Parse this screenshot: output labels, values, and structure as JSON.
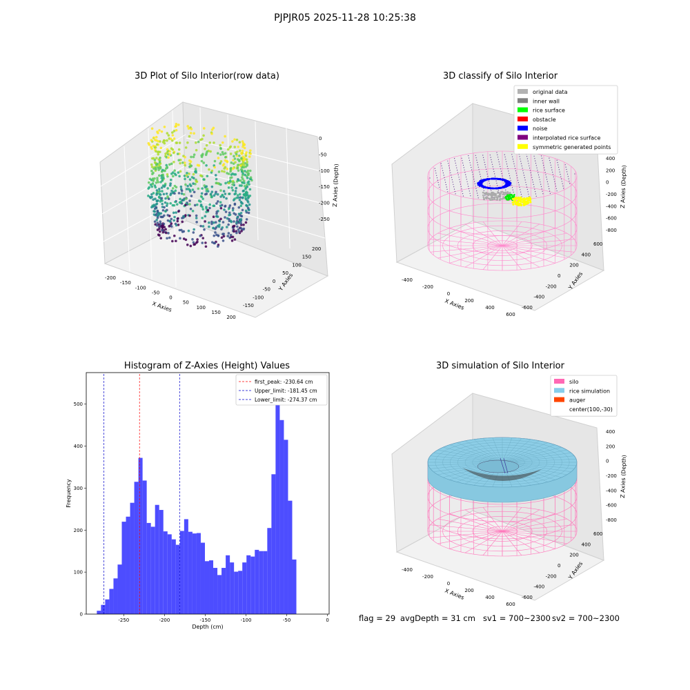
{
  "figure": {
    "suptitle": "PJPJR05 2025-11-28 10:25:38"
  },
  "panels": {
    "raw3d": {
      "title": "3D Plot of Silo Interior(row data)",
      "xlabel": "X Axies",
      "ylabel": "Y Axies",
      "zlabel": "Z Axies (Depth)",
      "xticks": [
        "-200",
        "-150",
        "-100",
        "-50",
        "0",
        "50",
        "100",
        "150",
        "200"
      ],
      "yticks": [
        "-150",
        "-100",
        "-50",
        "0",
        "50",
        "100",
        "150",
        "200"
      ],
      "zticks": [
        "0",
        "-50",
        "-100",
        "-150",
        "-200",
        "-250"
      ],
      "colormap": "viridis"
    },
    "classify3d": {
      "title": "3D classify of Silo Interior",
      "xlabel": "X Axies",
      "ylabel": "Y Axies",
      "zlabel": "Z Axies (Depth)",
      "xticks": [
        "-400",
        "-200",
        "0",
        "200",
        "400",
        "600"
      ],
      "yticks": [
        "-600",
        "-400",
        "-200",
        "0",
        "200",
        "400",
        "600"
      ],
      "zticks": [
        "400",
        "200",
        "0",
        "-200",
        "-400",
        "-600",
        "-800"
      ],
      "legend": [
        {
          "label": "original data",
          "color": "#b3b3b3"
        },
        {
          "label": "inner wall",
          "color": "#808080"
        },
        {
          "label": "rice surface",
          "color": "#00ff00"
        },
        {
          "label": "obstacle",
          "color": "#ff0000"
        },
        {
          "label": "noise",
          "color": "#0000ff"
        },
        {
          "label": "interpolated rice surface",
          "color": "#800080"
        },
        {
          "label": "symmetric generated points",
          "color": "#ffff00"
        }
      ]
    },
    "simulation3d": {
      "title": "3D simulation of Silo Interior",
      "xlabel": "X Axies",
      "ylabel": "Y Axies",
      "zlabel": "Z Axies (Depth)",
      "xticks": [
        "-400",
        "-200",
        "0",
        "200",
        "400",
        "600"
      ],
      "yticks": [
        "-600",
        "-400",
        "-200",
        "0",
        "200",
        "400",
        "600"
      ],
      "zticks": [
        "400",
        "200",
        "0",
        "-200",
        "-400",
        "-600",
        "-800"
      ],
      "legend": [
        {
          "label": "silo",
          "color": "#ff69b4"
        },
        {
          "label": "rice simulation",
          "color": "#87ceeb"
        },
        {
          "label": "auger",
          "color": "#ff4500"
        },
        {
          "label": "center(100,-30)",
          "color": "#ffffff"
        }
      ]
    }
  },
  "chart_data": [
    {
      "type": "bar",
      "title": "Histogram of Z-Axies (Height) Values",
      "xlabel": "Depth (cm)",
      "ylabel": "Frequency",
      "xlim": [
        -296,
        2
      ],
      "ylim": [
        0,
        575
      ],
      "xticks": [
        -250,
        -200,
        -150,
        -100,
        -50,
        0
      ],
      "yticks": [
        0,
        100,
        200,
        300,
        400,
        500
      ],
      "bar_color": "#4d4dff",
      "bin_start": -283,
      "bin_width": 5.1,
      "values": [
        8,
        22,
        35,
        60,
        85,
        118,
        220,
        232,
        265,
        315,
        372,
        318,
        217,
        208,
        260,
        248,
        197,
        190,
        178,
        165,
        198,
        226,
        196,
        192,
        193,
        170,
        126,
        128,
        110,
        93,
        110,
        140,
        123,
        101,
        103,
        123,
        140,
        137,
        153,
        150,
        150,
        205,
        333,
        548,
        462,
        415,
        270,
        130
      ],
      "vlines": [
        {
          "label": "first_peak: -230.64 cm",
          "x": -230.64,
          "color": "#ff0000"
        },
        {
          "label": "Upper_limit: -181.45 cm",
          "x": -181.45,
          "color": "#0000cc"
        },
        {
          "label": "Lower_limit: -274.37 cm",
          "x": -274.37,
          "color": "#0000cc"
        }
      ],
      "legend_position": "upper right"
    }
  ],
  "footer": {
    "flag": "flag = 29",
    "avg": "avgDepth = 31 cm",
    "sv1": "sv1 = 700~2300",
    "sv2": "sv2 = 700~2300"
  }
}
